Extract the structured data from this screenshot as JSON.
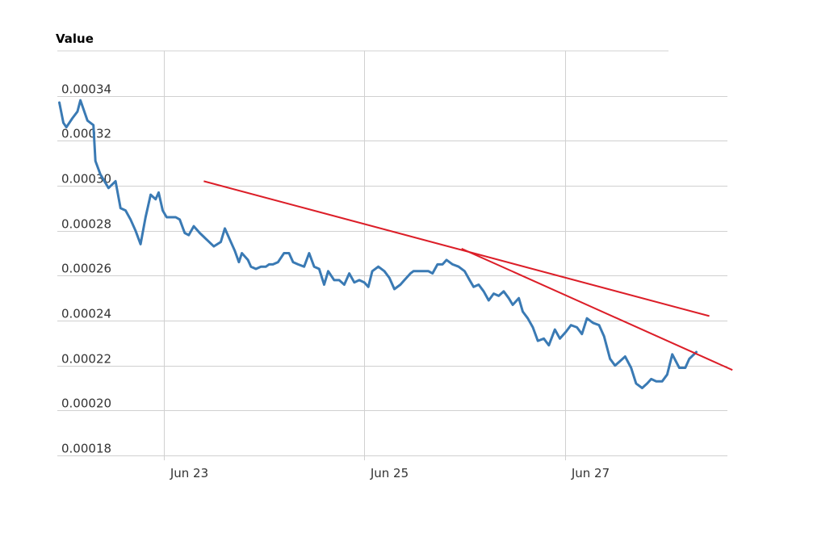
{
  "chart_data": {
    "type": "line",
    "ylabel": "Value",
    "xlabel": "",
    "ylim": [
      0.00018,
      0.00036
    ],
    "xlim": [
      21.92,
      28.6
    ],
    "yticks": [
      "0.00018",
      "0.00020",
      "0.00022",
      "0.00024",
      "0.00026",
      "0.00028",
      "0.00030",
      "0.00032",
      "0.00034"
    ],
    "ytick_values": [
      0.00018,
      0.0002,
      0.00022,
      0.00024,
      0.00026,
      0.00028,
      0.0003,
      0.00032,
      0.00034
    ],
    "xticks": [
      "Jun 23",
      "Jun 25",
      "Jun 27"
    ],
    "xtick_values": [
      22.98,
      24.98,
      26.98
    ],
    "grid": true,
    "colors": {
      "series": "#3a7ab4",
      "trendline": "#dc1e28",
      "grid": "#d0d0d0"
    },
    "series": [
      {
        "x": [
          21.94,
          21.98,
          22.01,
          22.07,
          22.12,
          22.15,
          22.22,
          22.28,
          22.3,
          22.35,
          22.43,
          22.5,
          22.55,
          22.6,
          22.65,
          22.7,
          22.75,
          22.8,
          22.85,
          22.9,
          22.93,
          22.97,
          23.01,
          23.06,
          23.1,
          23.14,
          23.19,
          23.23,
          23.28,
          23.34,
          23.41,
          23.48,
          23.55,
          23.59,
          23.64,
          23.69,
          23.73,
          23.76,
          23.82,
          23.85,
          23.9,
          23.95,
          24.0,
          24.03,
          24.07,
          24.12,
          24.18,
          24.23,
          24.27,
          24.32,
          24.38,
          24.43,
          24.48,
          24.53,
          24.58,
          24.62,
          24.68,
          24.73,
          24.78,
          24.83,
          24.88,
          24.93,
          24.98,
          25.02,
          25.06,
          25.12,
          25.18,
          25.23,
          25.28,
          25.34,
          25.38,
          25.44,
          25.47,
          25.52,
          25.57,
          25.62,
          25.66,
          25.71,
          25.76,
          25.8,
          25.86,
          25.92,
          25.98,
          26.03,
          26.07,
          26.12,
          26.17,
          26.22,
          26.27,
          26.32,
          26.37,
          26.42,
          26.46,
          26.52,
          26.56,
          26.61,
          26.66,
          26.71,
          26.77,
          26.82,
          26.88,
          26.93,
          26.99,
          27.04,
          27.1,
          27.15,
          27.2,
          27.26,
          27.32,
          27.37,
          27.43,
          27.48,
          27.53,
          27.58,
          27.64,
          27.69,
          27.75,
          27.8,
          27.84,
          27.89,
          27.95,
          28.0,
          28.05,
          28.12,
          28.18,
          28.22,
          28.29
        ],
        "y": [
          0.000337,
          0.000328,
          0.000326,
          0.00033,
          0.000333,
          0.000338,
          0.000329,
          0.000327,
          0.000311,
          0.000305,
          0.000299,
          0.000302,
          0.00029,
          0.000289,
          0.000285,
          0.00028,
          0.000274,
          0.000286,
          0.000296,
          0.000294,
          0.000297,
          0.000289,
          0.000286,
          0.000286,
          0.000286,
          0.000285,
          0.000279,
          0.000278,
          0.000282,
          0.000279,
          0.000276,
          0.000273,
          0.000275,
          0.000281,
          0.000276,
          0.000271,
          0.000266,
          0.00027,
          0.000267,
          0.000264,
          0.000263,
          0.000264,
          0.000264,
          0.000265,
          0.000265,
          0.000266,
          0.00027,
          0.00027,
          0.000266,
          0.000265,
          0.000264,
          0.00027,
          0.000264,
          0.000263,
          0.000256,
          0.000262,
          0.000258,
          0.000258,
          0.000256,
          0.000261,
          0.000257,
          0.000258,
          0.000257,
          0.000255,
          0.000262,
          0.000264,
          0.000262,
          0.000259,
          0.000254,
          0.000256,
          0.000258,
          0.000261,
          0.000262,
          0.000262,
          0.000262,
          0.000262,
          0.000261,
          0.000265,
          0.000265,
          0.000267,
          0.000265,
          0.000264,
          0.000262,
          0.000258,
          0.000255,
          0.000256,
          0.000253,
          0.000249,
          0.000252,
          0.000251,
          0.000253,
          0.00025,
          0.000247,
          0.00025,
          0.000244,
          0.000241,
          0.000237,
          0.000231,
          0.000232,
          0.000229,
          0.000236,
          0.000232,
          0.000235,
          0.000238,
          0.000237,
          0.000234,
          0.000241,
          0.000239,
          0.000238,
          0.000233,
          0.000223,
          0.00022,
          0.000222,
          0.000224,
          0.000219,
          0.000212,
          0.00021,
          0.000212,
          0.000214,
          0.000213,
          0.000213,
          0.000216,
          0.000225,
          0.000219,
          0.000219,
          0.000223,
          0.000226
        ],
        "color": "#3a7ab4"
      }
    ],
    "trendlines": [
      {
        "x": [
          23.38,
          28.42
        ],
        "y": [
          0.000302,
          0.000242
        ],
        "color": "#dc1e28"
      },
      {
        "x": [
          25.95,
          28.65
        ],
        "y": [
          0.000272,
          0.000218
        ],
        "color": "#dc1e28"
      }
    ]
  }
}
